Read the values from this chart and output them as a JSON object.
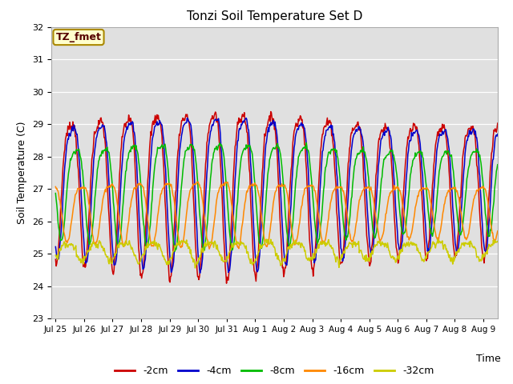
{
  "title": "Tonzi Soil Temperature Set D",
  "ylabel": "Soil Temperature (C)",
  "xlabel": "Time",
  "ylim": [
    23.0,
    32.0
  ],
  "yticks": [
    23.0,
    24.0,
    25.0,
    26.0,
    27.0,
    28.0,
    29.0,
    30.0,
    31.0,
    32.0
  ],
  "xtick_labels": [
    "Jul 25",
    "Jul 26",
    "Jul 27",
    "Jul 28",
    "Jul 29",
    "Jul 30",
    "Jul 31",
    "Aug 1",
    "Aug 2",
    "Aug 3",
    "Aug 4",
    "Aug 5",
    "Aug 6",
    "Aug 7",
    "Aug 8",
    "Aug 9"
  ],
  "series": [
    {
      "label": "-2cm",
      "color": "#cc0000",
      "amplitude": 2.8,
      "base": 27.3,
      "phase": 0.0,
      "lag": 0.0,
      "noise": 0.08
    },
    {
      "label": "-4cm",
      "color": "#0000cc",
      "amplitude": 2.6,
      "base": 27.3,
      "phase": 0.0,
      "lag": 0.06,
      "noise": 0.05
    },
    {
      "label": "-8cm",
      "color": "#00bb00",
      "amplitude": 1.8,
      "base": 27.1,
      "phase": 0.0,
      "lag": 0.18,
      "noise": 0.04
    },
    {
      "label": "-16cm",
      "color": "#ff8800",
      "amplitude": 1.1,
      "base": 26.4,
      "phase": 0.0,
      "lag": 0.38,
      "noise": 0.03
    },
    {
      "label": "-32cm",
      "color": "#cccc00",
      "amplitude": 0.35,
      "base": 25.1,
      "phase": 0.0,
      "lag": 0.9,
      "noise": 0.06
    }
  ],
  "annotation_text": "TZ_fmet",
  "bg_color": "#e0e0e0",
  "fig_bg": "#ffffff",
  "linewidth": 1.1,
  "n_points": 720,
  "days_total": 15.5
}
